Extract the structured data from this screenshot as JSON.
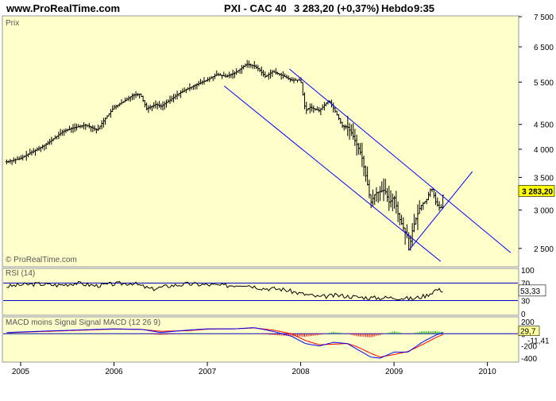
{
  "header": {
    "site": "www.ProRealTime.com",
    "instrument": "PXI - CAC 40",
    "quote": "3 283,20 (+0,37%)",
    "period": "Hebdo",
    "time": "9:35"
  },
  "colors": {
    "panel_bg": "#FFFFCC",
    "price_bar": "#000000",
    "channel": "#0000FF",
    "macd_line": "#0000FF",
    "signal_line": "#FF0000",
    "hist_positive": "#00AA00",
    "hist_negative": "#FF0000",
    "last_price_box": "#FFFF00",
    "rsi_box": "#FFFFFF",
    "macd_box_bg": "#FFFF99"
  },
  "chart_data": [
    {
      "type": "line",
      "panel": "price",
      "title": "Prix",
      "watermark": "© ProRealTime.com",
      "y_scale": "log",
      "ylim": [
        2300,
        7500
      ],
      "yticks": [
        "7 500",
        "6 500",
        "5 500",
        "4 500",
        "4 000",
        "3 500",
        "3 000",
        "2 500"
      ],
      "xlim": [
        2004.83,
        2010.25
      ],
      "xticks": [
        "2005",
        "2006",
        "2007",
        "2008",
        "2009",
        "2010"
      ],
      "last_value_label": "3 283,20",
      "series": [
        {
          "x": [
            2004.85,
            2005.0,
            2005.1,
            2005.2,
            2005.3,
            2005.45,
            2005.55,
            2005.7,
            2005.82,
            2005.9,
            2006.0,
            2006.1,
            2006.2,
            2006.28,
            2006.35,
            2006.45,
            2006.5,
            2006.6,
            2006.7,
            2006.85,
            2007.0,
            2007.1,
            2007.2,
            2007.3,
            2007.42,
            2007.5,
            2007.55,
            2007.62,
            2007.7,
            2007.8,
            2007.9,
            2008.0,
            2008.05,
            2008.1,
            2008.2,
            2008.3,
            2008.37,
            2008.45,
            2008.5,
            2008.55,
            2008.65,
            2008.72,
            2008.75,
            2008.8,
            2008.9,
            2008.95,
            2009.0,
            2009.05,
            2009.12,
            2009.18,
            2009.2,
            2009.28,
            2009.35,
            2009.4,
            2009.45,
            2009.5,
            2009.53
          ],
          "close": [
            3770,
            3830,
            3930,
            4020,
            4130,
            4350,
            4420,
            4490,
            4380,
            4610,
            4880,
            5010,
            5170,
            5200,
            4850,
            4950,
            4900,
            5050,
            5220,
            5400,
            5560,
            5700,
            5650,
            5750,
            5990,
            5940,
            5850,
            5650,
            5780,
            5680,
            5550,
            5550,
            4800,
            4880,
            4800,
            5050,
            4790,
            4450,
            4450,
            4300,
            3900,
            3350,
            3100,
            3250,
            3300,
            3100,
            3200,
            2900,
            2700,
            2580,
            2750,
            3050,
            3150,
            3350,
            3100,
            3000,
            3283
          ]
        }
      ],
      "trendlines": [
        "upper channel",
        "lower channel",
        "rising support"
      ]
    },
    {
      "type": "line",
      "panel": "rsi",
      "title": "RSI (14)",
      "ylim": [
        0,
        100
      ],
      "levels": [
        70,
        30
      ],
      "axis_labels": [
        "100",
        "70",
        "30",
        "0"
      ],
      "last_value_label": "53,33",
      "series": [
        {
          "x": [
            2004.85,
            2005.0,
            2005.2,
            2005.4,
            2005.6,
            2005.8,
            2006.0,
            2006.2,
            2006.4,
            2006.6,
            2006.8,
            2007.0,
            2007.2,
            2007.4,
            2007.6,
            2007.8,
            2008.0,
            2008.2,
            2008.4,
            2008.6,
            2008.8,
            2009.0,
            2009.2,
            2009.35,
            2009.45,
            2009.53
          ],
          "y": [
            62,
            66,
            68,
            65,
            70,
            64,
            68,
            70,
            56,
            64,
            68,
            66,
            64,
            67,
            58,
            56,
            46,
            38,
            42,
            38,
            36,
            37,
            34,
            42,
            55,
            53
          ]
        }
      ]
    },
    {
      "type": "line",
      "panel": "macd",
      "title": "MACD moins Signal Signal MACD (12 26 9)",
      "ylim": [
        -450,
        250
      ],
      "axis_labels": [
        "200",
        "0",
        "-200",
        "-400"
      ],
      "last_value_labels": [
        "29,7",
        "-11,41"
      ],
      "series": [
        {
          "name": "MACD",
          "x": [
            2004.85,
            2005.2,
            2005.6,
            2006.0,
            2006.3,
            2006.5,
            2006.8,
            2007.0,
            2007.3,
            2007.5,
            2007.7,
            2007.9,
            2008.05,
            2008.2,
            2008.35,
            2008.5,
            2008.6,
            2008.75,
            2008.85,
            2009.0,
            2009.15,
            2009.3,
            2009.45,
            2009.53
          ],
          "y": [
            20,
            40,
            60,
            80,
            70,
            20,
            60,
            80,
            80,
            100,
            40,
            -40,
            -160,
            -200,
            -140,
            -160,
            -250,
            -380,
            -400,
            -300,
            -300,
            -140,
            -20,
            20
          ]
        },
        {
          "name": "Signal",
          "x": [
            2004.85,
            2005.2,
            2005.6,
            2006.0,
            2006.3,
            2006.5,
            2006.8,
            2007.0,
            2007.3,
            2007.5,
            2007.7,
            2007.9,
            2008.05,
            2008.2,
            2008.35,
            2008.5,
            2008.6,
            2008.75,
            2008.85,
            2009.0,
            2009.15,
            2009.3,
            2009.45,
            2009.53
          ],
          "y": [
            15,
            35,
            55,
            75,
            70,
            40,
            50,
            75,
            80,
            95,
            60,
            0,
            -110,
            -180,
            -170,
            -160,
            -210,
            -320,
            -380,
            -340,
            -290,
            -180,
            -60,
            -10
          ]
        }
      ]
    }
  ]
}
